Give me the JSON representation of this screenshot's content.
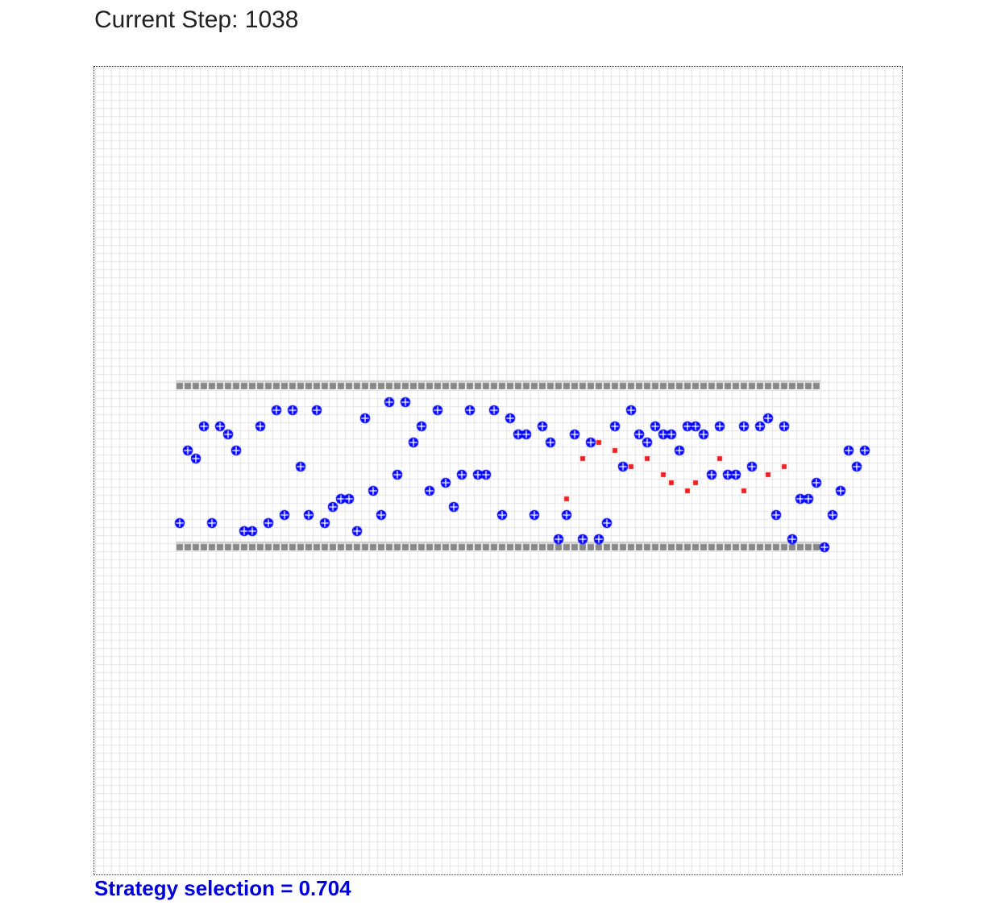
{
  "header": {
    "step_label": "Current Step: 1038"
  },
  "footer": {
    "strategy_label": "Strategy selection = 0.704"
  },
  "simulation": {
    "grid_size": 100,
    "colors": {
      "grid_line": "#e4e4e4",
      "wall": "#888888",
      "wall_shadow": "#cccccc",
      "agent": "#0000ff",
      "agent_mark": "#ffffff",
      "patch": "#ee2222"
    },
    "walls": [
      {
        "row": 39,
        "col_start": 10,
        "col_end": 89
      },
      {
        "row": 59,
        "col_start": 10,
        "col_end": 89
      }
    ],
    "agents": [
      [
        10,
        56
      ],
      [
        11,
        47
      ],
      [
        12,
        48
      ],
      [
        13,
        44
      ],
      [
        14,
        56
      ],
      [
        15,
        44
      ],
      [
        16,
        45
      ],
      [
        17,
        47
      ],
      [
        18,
        57
      ],
      [
        19,
        57
      ],
      [
        20,
        44
      ],
      [
        21,
        56
      ],
      [
        22,
        42
      ],
      [
        23,
        55
      ],
      [
        24,
        42
      ],
      [
        25,
        49
      ],
      [
        26,
        55
      ],
      [
        27,
        42
      ],
      [
        28,
        56
      ],
      [
        29,
        54
      ],
      [
        30,
        53
      ],
      [
        31,
        53
      ],
      [
        32,
        57
      ],
      [
        33,
        43
      ],
      [
        34,
        52
      ],
      [
        35,
        55
      ],
      [
        36,
        41
      ],
      [
        37,
        50
      ],
      [
        38,
        41
      ],
      [
        39,
        46
      ],
      [
        40,
        44
      ],
      [
        41,
        52
      ],
      [
        42,
        42
      ],
      [
        43,
        51
      ],
      [
        44,
        54
      ],
      [
        45,
        50
      ],
      [
        46,
        42
      ],
      [
        47,
        50
      ],
      [
        48,
        50
      ],
      [
        49,
        42
      ],
      [
        50,
        55
      ],
      [
        51,
        43
      ],
      [
        52,
        45
      ],
      [
        53,
        45
      ],
      [
        54,
        55
      ],
      [
        55,
        44
      ],
      [
        56,
        46
      ],
      [
        57,
        58
      ],
      [
        58,
        55
      ],
      [
        59,
        45
      ],
      [
        60,
        58
      ],
      [
        61,
        46
      ],
      [
        62,
        58
      ],
      [
        63,
        56
      ],
      [
        64,
        44
      ],
      [
        65,
        49
      ],
      [
        66,
        42
      ],
      [
        67,
        45
      ],
      [
        68,
        46
      ],
      [
        69,
        44
      ],
      [
        70,
        45
      ],
      [
        71,
        45
      ],
      [
        72,
        47
      ],
      [
        73,
        44
      ],
      [
        74,
        44
      ],
      [
        75,
        45
      ],
      [
        76,
        50
      ],
      [
        77,
        44
      ],
      [
        78,
        50
      ],
      [
        79,
        50
      ],
      [
        80,
        44
      ],
      [
        81,
        49
      ],
      [
        82,
        44
      ],
      [
        83,
        43
      ],
      [
        84,
        55
      ],
      [
        85,
        44
      ],
      [
        86,
        58
      ],
      [
        87,
        53
      ],
      [
        88,
        53
      ],
      [
        89,
        51
      ],
      [
        90,
        59
      ],
      [
        91,
        55
      ],
      [
        92,
        52
      ],
      [
        93,
        47
      ],
      [
        94,
        49
      ],
      [
        95,
        47
      ]
    ],
    "patches": [
      [
        58,
        53
      ],
      [
        60,
        48
      ],
      [
        62,
        46
      ],
      [
        64,
        47
      ],
      [
        66,
        49
      ],
      [
        68,
        48
      ],
      [
        70,
        50
      ],
      [
        71,
        51
      ],
      [
        72,
        47
      ],
      [
        73,
        52
      ],
      [
        74,
        51
      ],
      [
        77,
        48
      ],
      [
        79,
        50
      ],
      [
        80,
        52
      ],
      [
        83,
        50
      ],
      [
        85,
        49
      ]
    ]
  }
}
